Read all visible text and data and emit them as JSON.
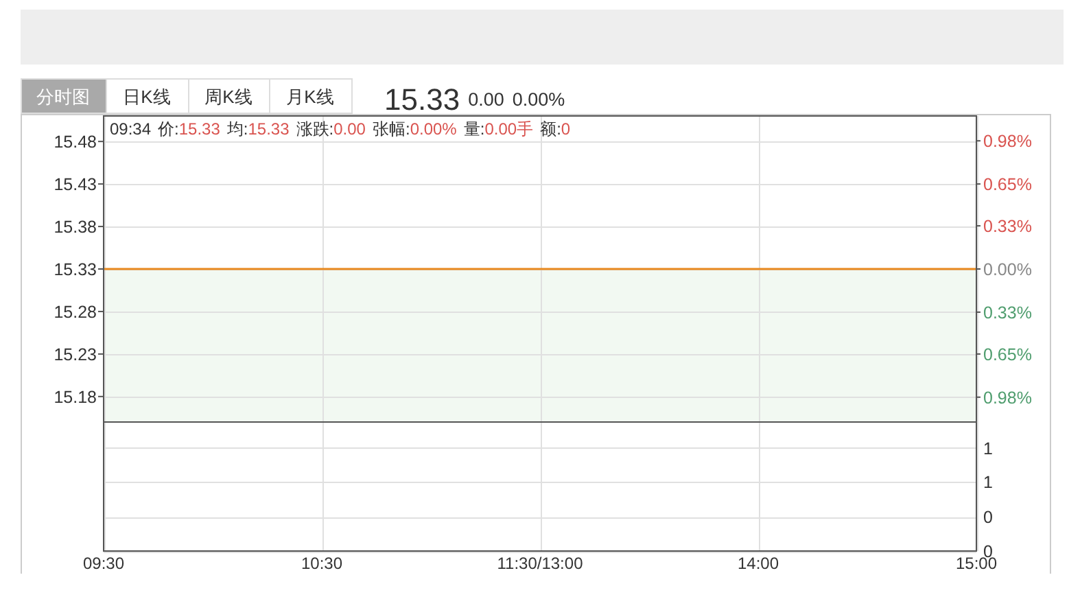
{
  "chart_data": [
    {
      "type": "line",
      "categories": [
        null,
        null,
        null,
        null,
        null
      ],
      "series": [
        {
          "color": "#e8891e",
          "values": [
            15.33,
            15.33,
            15.33,
            15.33,
            15.33
          ]
        }
      ],
      "bands": [
        {
          "axis": "y",
          "from": 15.15,
          "to": 15.33,
          "color": "#f2f9f2"
        }
      ],
      "ylim": [
        15.15,
        15.51
      ],
      "yticks": [
        15.48,
        15.43,
        15.38,
        15.33,
        15.28,
        15.23,
        15.18
      ],
      "y2lim": [
        -1.17,
        1.17
      ],
      "y2ticks": [
        {
          "value": 0.98,
          "label": "0.98%"
        },
        {
          "value": 0.65,
          "label": "0.65%"
        },
        {
          "value": 0.33,
          "label": "0.33%"
        },
        {
          "value": 0,
          "label": "0.00%"
        },
        {
          "value": -0.33,
          "label": "0.33%"
        },
        {
          "value": -0.65,
          "label": "0.65%"
        },
        {
          "value": -0.98,
          "label": "0.98%"
        }
      ],
      "grid": true,
      "annotations": [
        "分时图",
        "日K线",
        "周K线",
        "月K线",
        "15.33",
        "0.00",
        "0.00%",
        "09:34",
        "价:15.33",
        "均:15.33",
        "涨跌:0.00",
        "张幅:0.00%",
        "量:0.00手",
        "额:0"
      ]
    },
    {
      "type": "bar",
      "categories": [
        "09:30",
        "10:30",
        "11:30/13:00",
        "14:00",
        "15:00"
      ],
      "ylim": [
        0,
        1.25
      ],
      "yticks": [
        1,
        {
          "value": 0.67,
          "label": "1"
        },
        {
          "value": 0.33,
          "label": "0"
        },
        0
      ],
      "grid": true
    }
  ]
}
